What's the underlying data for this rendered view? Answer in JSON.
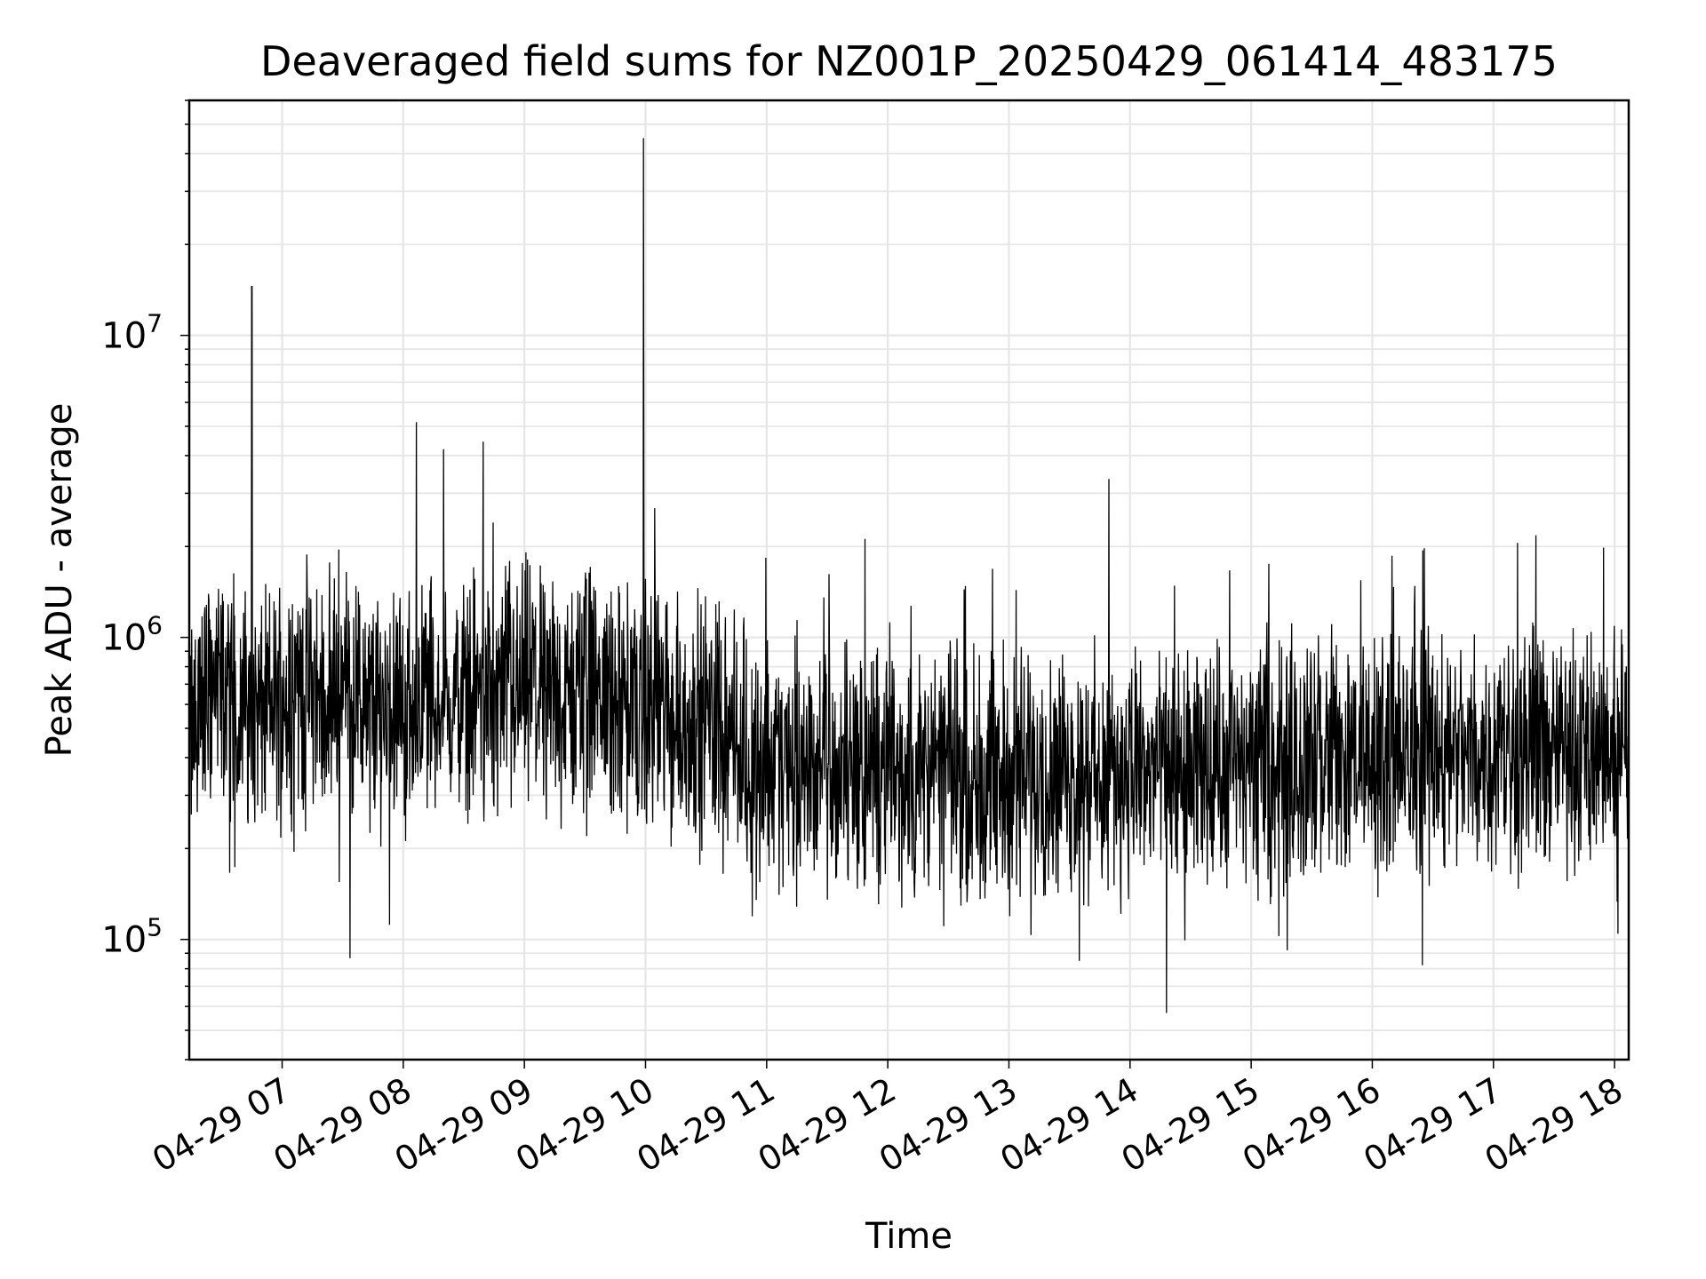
{
  "chart_data": {
    "type": "line",
    "title": "Deaveraged field sums for NZ001P_20250429_061414_483175",
    "xlabel": "Time",
    "ylabel": "Peak ADU - average",
    "x_ticks": [
      "04-29 07",
      "04-29 08",
      "04-29 09",
      "04-29 10",
      "04-29 11",
      "04-29 12",
      "04-29 13",
      "04-29 14",
      "04-29 15",
      "04-29 16",
      "04-29 17",
      "04-29 18"
    ],
    "y_ticks": [
      {
        "value": 100000,
        "base": "10",
        "exp": "5"
      },
      {
        "value": 1000000,
        "base": "10",
        "exp": "6"
      },
      {
        "value": 10000000,
        "base": "10",
        "exp": "7"
      }
    ],
    "y_scale": "log",
    "xlim": [
      "2025-04-29 06:14",
      "2025-04-29 18:07"
    ],
    "ylim": [
      40000,
      60000000
    ],
    "grid": true,
    "line_color": "#000000",
    "grid_color": "#e6e6e6",
    "series": [
      {
        "points": [
          [
            "2025-04-29 06:14",
            450000
          ],
          [
            "2025-04-29 06:20",
            650000
          ],
          [
            "2025-04-29 06:30",
            700000
          ],
          [
            "2025-04-29 06:40",
            600000
          ],
          [
            "2025-04-29 06:45",
            14500000
          ],
          [
            "2025-04-29 06:50",
            550000
          ],
          [
            "2025-04-29 07:00",
            650000
          ],
          [
            "2025-04-29 07:10",
            700000
          ],
          [
            "2025-04-29 07:20",
            600000
          ],
          [
            "2025-04-29 07:30",
            750000
          ],
          [
            "2025-04-29 07:40",
            560000
          ],
          [
            "2025-04-29 07:50",
            600000
          ],
          [
            "2025-04-29 08:00",
            550000
          ],
          [
            "2025-04-29 08:10",
            700000
          ],
          [
            "2025-04-29 08:20",
            4200000
          ],
          [
            "2025-04-29 08:30",
            650000
          ],
          [
            "2025-04-29 08:40",
            680000
          ],
          [
            "2025-04-29 08:50",
            620000
          ],
          [
            "2025-04-29 09:00",
            700000
          ],
          [
            "2025-04-29 09:10",
            650000
          ],
          [
            "2025-04-29 09:20",
            600000
          ],
          [
            "2025-04-29 09:30",
            680000
          ],
          [
            "2025-04-29 09:40",
            620000
          ],
          [
            "2025-04-29 09:50",
            580000
          ],
          [
            "2025-04-29 09:59",
            45000000
          ],
          [
            "2025-04-29 10:10",
            550000
          ],
          [
            "2025-04-29 10:20",
            500000
          ],
          [
            "2025-04-29 10:30",
            560000
          ],
          [
            "2025-04-29 10:40",
            520000
          ],
          [
            "2025-04-29 10:50",
            400000
          ],
          [
            "2025-04-29 11:00",
            380000
          ],
          [
            "2025-04-29 11:30",
            370000
          ],
          [
            "2025-04-29 12:00",
            360000
          ],
          [
            "2025-04-29 12:30",
            360000
          ],
          [
            "2025-04-29 13:00",
            350000
          ],
          [
            "2025-04-29 13:30",
            360000
          ],
          [
            "2025-04-29 14:00",
            350000
          ],
          [
            "2025-04-29 14:30",
            360000
          ],
          [
            "2025-04-29 15:00",
            380000
          ],
          [
            "2025-04-29 15:30",
            390000
          ],
          [
            "2025-04-29 16:00",
            400000
          ],
          [
            "2025-04-29 16:30",
            420000
          ],
          [
            "2025-04-29 17:00",
            430000
          ],
          [
            "2025-04-29 17:30",
            420000
          ],
          [
            "2025-04-29 18:07",
            420000
          ]
        ]
      }
    ]
  }
}
